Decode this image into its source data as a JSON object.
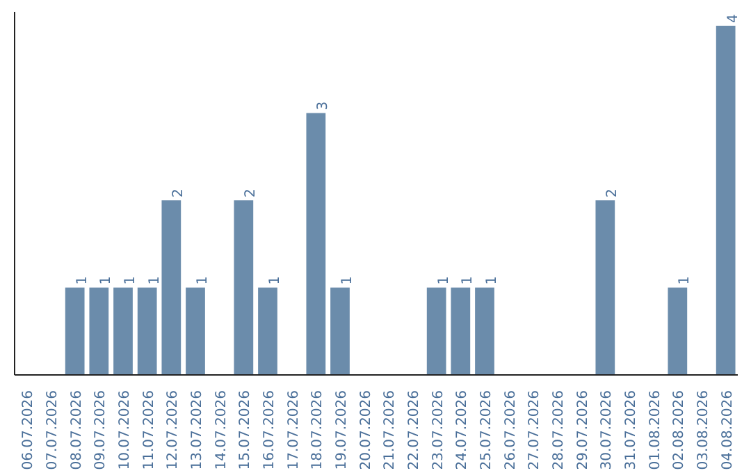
{
  "chart_data": {
    "type": "bar",
    "categories": [
      "06.07.2026",
      "07.07.2026",
      "08.07.2026",
      "09.07.2026",
      "10.07.2026",
      "11.07.2026",
      "12.07.2026",
      "13.07.2026",
      "14.07.2026",
      "15.07.2026",
      "16.07.2026",
      "17.07.2026",
      "18.07.2026",
      "19.07.2026",
      "20.07.2026",
      "21.07.2026",
      "22.07.2026",
      "23.07.2026",
      "24.07.2026",
      "25.07.2026",
      "26.07.2026",
      "27.07.2026",
      "28.07.2026",
      "29.07.2026",
      "30.07.2026",
      "31.07.2026",
      "01.08.2026",
      "02.08.2026",
      "03.08.2026",
      "04.08.2026"
    ],
    "values": [
      0,
      0,
      1,
      1,
      1,
      1,
      2,
      1,
      0,
      2,
      1,
      0,
      3,
      1,
      0,
      0,
      0,
      1,
      1,
      1,
      0,
      0,
      0,
      0,
      2,
      0,
      0,
      1,
      0,
      4
    ],
    "value_labels": [
      null,
      null,
      "1",
      "1",
      "1",
      "1",
      "2",
      "1",
      null,
      "2",
      "1",
      null,
      "3",
      "1",
      null,
      null,
      null,
      "1",
      "1",
      "1",
      null,
      null,
      null,
      null,
      "2",
      null,
      null,
      "1",
      null,
      "4"
    ],
    "color": "#6b8cab",
    "grid": false
  }
}
